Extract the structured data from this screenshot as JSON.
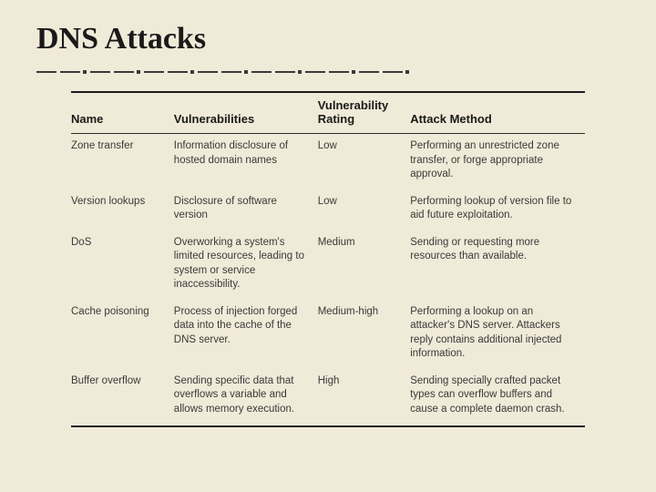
{
  "slide": {
    "title": "DNS Attacks",
    "background_color": "#f0ead8",
    "title_color": "#1a1a1a",
    "divider_color": "#3a3a3a",
    "table": {
      "header_border_color": "#1a1a1a",
      "row_border_color": "#2a2a2a",
      "text_color": "#3a3a3a",
      "header_fontsize": 13,
      "cell_fontsize": 11.5,
      "columns": [
        {
          "key": "name",
          "label": "Name",
          "width": "20%"
        },
        {
          "key": "vuln",
          "label": "Vulnerabilities",
          "width": "28%"
        },
        {
          "key": "rating",
          "label": "Vulnerability Rating",
          "width": "18%"
        },
        {
          "key": "method",
          "label": "Attack Method",
          "width": "34%"
        }
      ],
      "rows": [
        {
          "name": "Zone transfer",
          "vuln": "Information disclosure of hosted domain names",
          "rating": "Low",
          "method": "Performing an unrestricted zone transfer, or forge appropriate approval."
        },
        {
          "name": "Version lookups",
          "vuln": "Disclosure of software version",
          "rating": "Low",
          "method": "Performing lookup of version file to aid future exploitation."
        },
        {
          "name": "DoS",
          "vuln": "Overworking a system's limited resources, leading to system or service inaccessibility.",
          "rating": "Medium",
          "method": "Sending or requesting more resources than available."
        },
        {
          "name": "Cache poisoning",
          "vuln": "Process of injection forged data into the cache of the DNS server.",
          "rating": "Medium-high",
          "method": "Performing a lookup on an attacker's DNS server. Attackers reply contains additional injected information."
        },
        {
          "name": "Buffer overflow",
          "vuln": "Sending specific data that overflows a variable and allows memory execution.",
          "rating": "High",
          "method": "Sending specially crafted packet types can overflow buffers and cause a complete daemon crash."
        }
      ]
    }
  }
}
